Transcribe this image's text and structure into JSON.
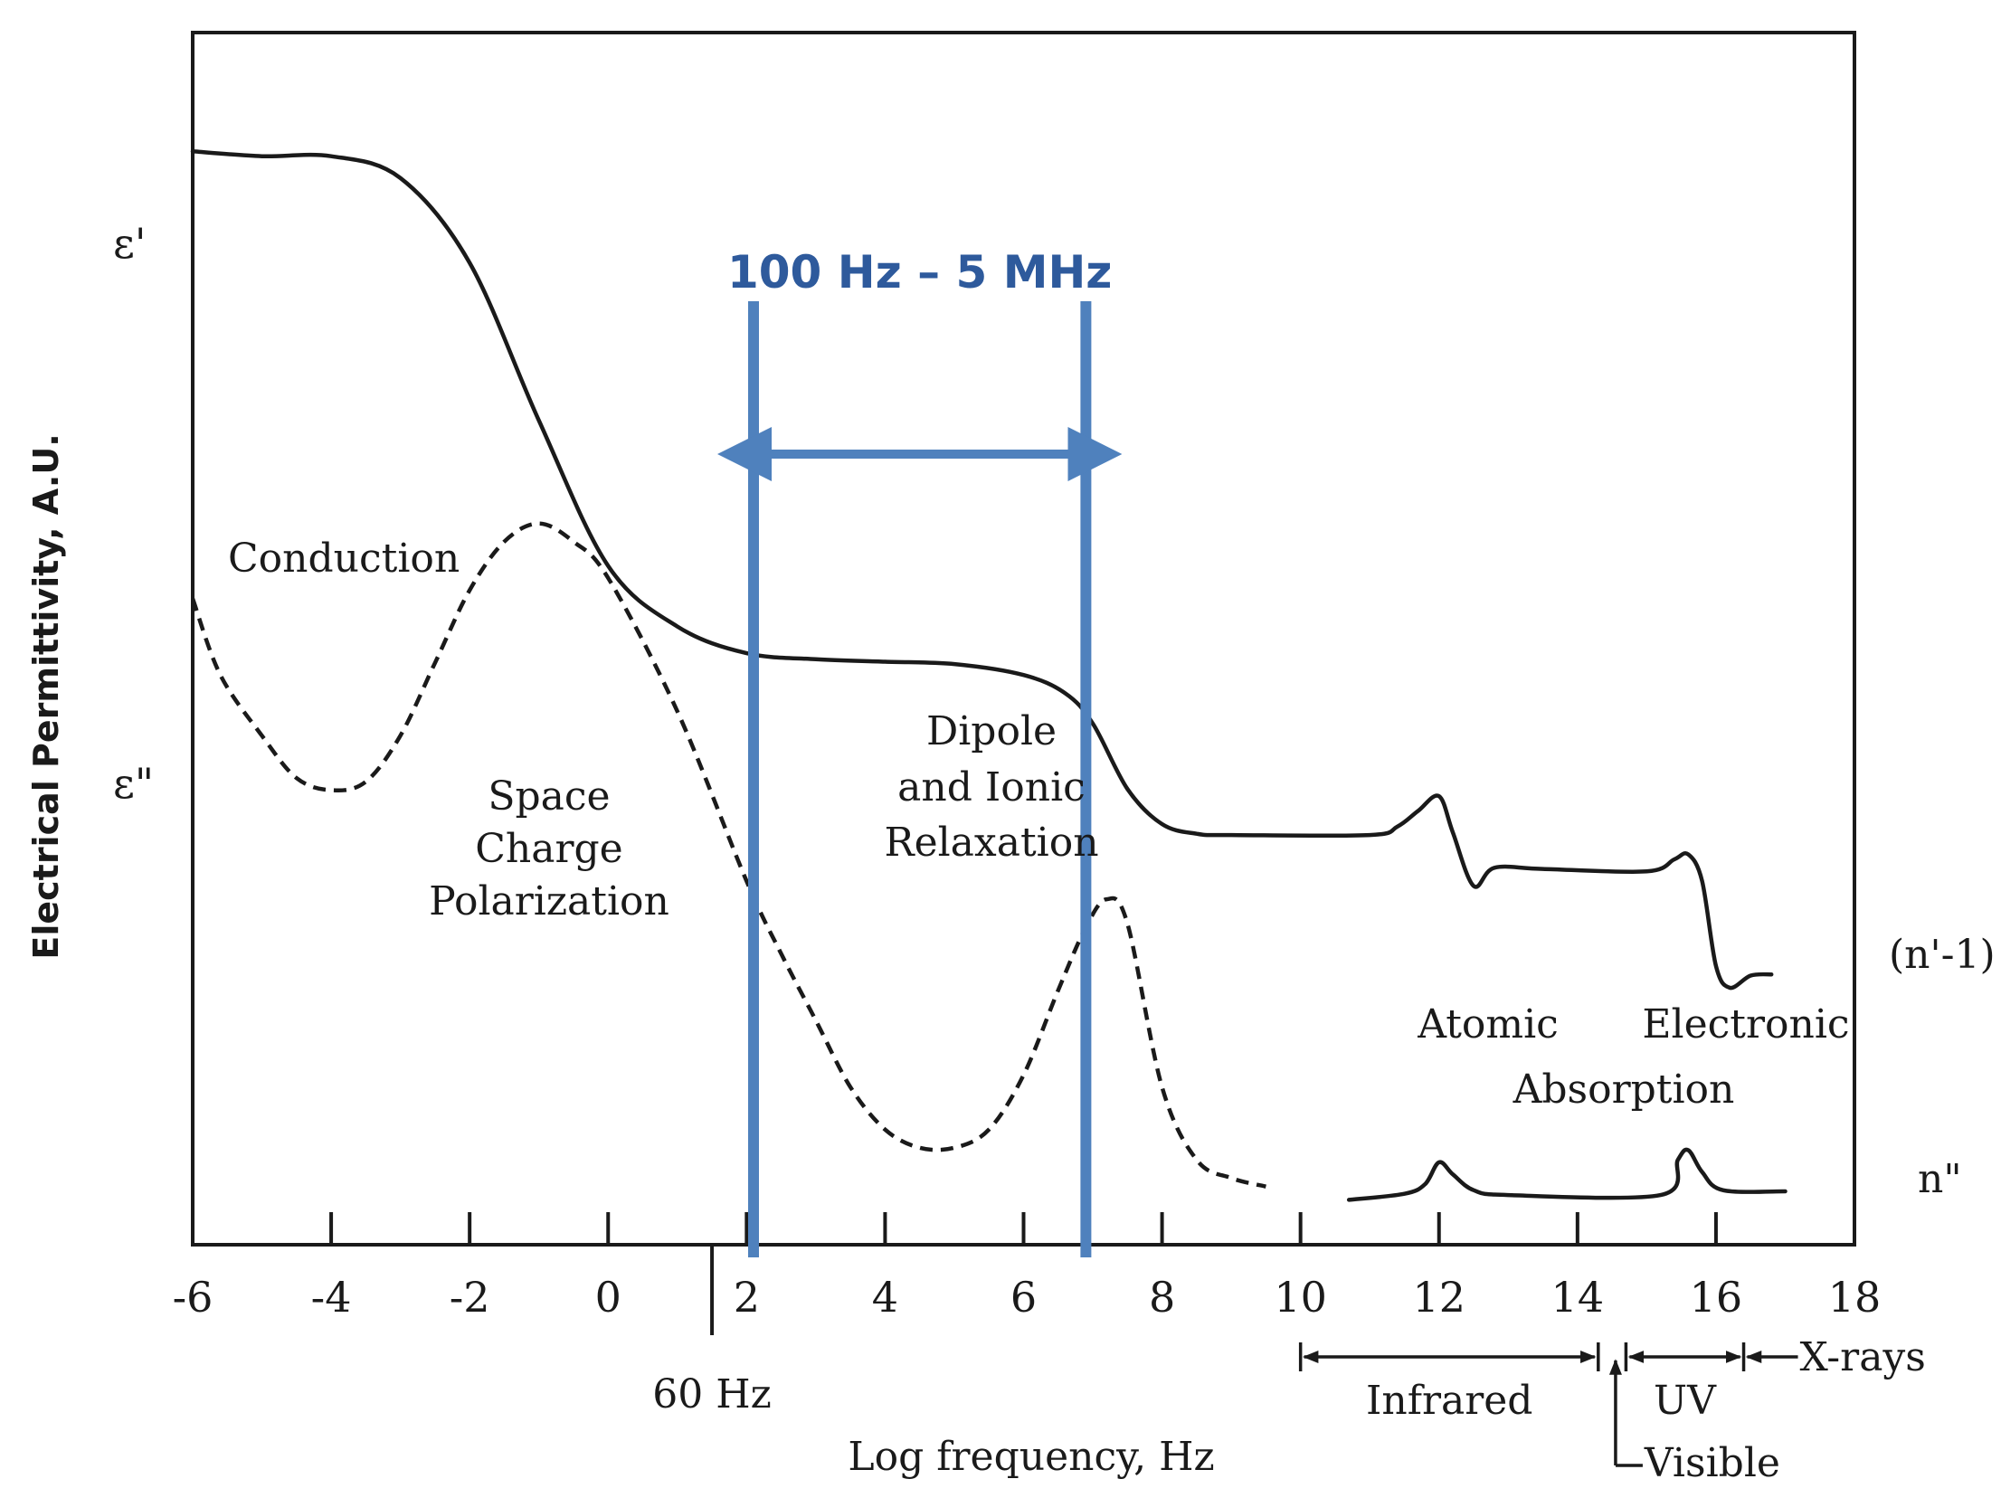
{
  "chart_data": {
    "type": "line",
    "title": "",
    "xlabel": "Log frequency, Hz",
    "ylabel": "Electrical Permittivity, A.U.",
    "xlim": [
      -6,
      18
    ],
    "xticks": [
      -6,
      -4,
      -2,
      0,
      2,
      4,
      6,
      8,
      10,
      12,
      14,
      16,
      18
    ],
    "yticks_labels": [
      "ε'",
      "ε\""
    ],
    "series": [
      {
        "name": "ε'",
        "style": "solid",
        "points": [
          [
            -6,
            0.902
          ],
          [
            -5,
            0.898
          ],
          [
            -4,
            0.898
          ],
          [
            -3,
            0.88
          ],
          [
            -2,
            0.81
          ],
          [
            -1,
            0.68
          ],
          [
            0,
            0.56
          ],
          [
            1,
            0.51
          ],
          [
            2,
            0.488
          ],
          [
            3,
            0.483
          ],
          [
            4,
            0.481
          ],
          [
            5,
            0.479
          ],
          [
            6,
            0.47
          ],
          [
            6.6,
            0.455
          ],
          [
            7,
            0.43
          ],
          [
            7.5,
            0.376
          ],
          [
            8,
            0.347
          ],
          [
            8.5,
            0.339
          ],
          [
            9,
            0.338
          ],
          [
            11,
            0.338
          ],
          [
            11.4,
            0.345
          ],
          [
            11.7,
            0.358
          ],
          [
            12,
            0.37
          ],
          [
            12.2,
            0.34
          ],
          [
            12.5,
            0.296
          ],
          [
            12.8,
            0.311
          ],
          [
            13.5,
            0.31
          ],
          [
            15,
            0.308
          ],
          [
            15.4,
            0.318
          ],
          [
            15.6,
            0.322
          ],
          [
            15.8,
            0.3
          ],
          [
            16,
            0.23
          ],
          [
            16.2,
            0.212
          ],
          [
            16.5,
            0.222
          ],
          [
            16.8,
            0.223
          ]
        ]
      },
      {
        "name": "ε\"",
        "style": "dashed",
        "points": [
          [
            -6,
            0.533
          ],
          [
            -5.6,
            0.47
          ],
          [
            -5,
            0.42
          ],
          [
            -4.5,
            0.385
          ],
          [
            -4,
            0.375
          ],
          [
            -3.5,
            0.382
          ],
          [
            -3,
            0.42
          ],
          [
            -2.5,
            0.48
          ],
          [
            -2,
            0.54
          ],
          [
            -1.5,
            0.58
          ],
          [
            -1,
            0.595
          ],
          [
            -0.5,
            0.58
          ],
          [
            0,
            0.55
          ],
          [
            1,
            0.44
          ],
          [
            2,
            0.3
          ],
          [
            2.5,
            0.24
          ],
          [
            3,
            0.185
          ],
          [
            3.5,
            0.13
          ],
          [
            4,
            0.095
          ],
          [
            4.5,
            0.08
          ],
          [
            5,
            0.08
          ],
          [
            5.5,
            0.095
          ],
          [
            6,
            0.14
          ],
          [
            6.5,
            0.21
          ],
          [
            6.9,
            0.262
          ],
          [
            7.2,
            0.285
          ],
          [
            7.5,
            0.265
          ],
          [
            8,
            0.13
          ],
          [
            8.5,
            0.07
          ],
          [
            9,
            0.055
          ],
          [
            9.5,
            0.048
          ]
        ]
      },
      {
        "name": "n\"",
        "style": "solid",
        "points": [
          [
            10.7,
            0.037
          ],
          [
            11.5,
            0.042
          ],
          [
            11.8,
            0.05
          ],
          [
            12,
            0.068
          ],
          [
            12.2,
            0.058
          ],
          [
            12.5,
            0.045
          ],
          [
            13,
            0.041
          ],
          [
            15.2,
            0.041
          ],
          [
            15.45,
            0.07
          ],
          [
            15.6,
            0.078
          ],
          [
            15.8,
            0.06
          ],
          [
            16.1,
            0.045
          ],
          [
            17,
            0.044
          ]
        ]
      }
    ],
    "annotations": {
      "band_label": "100 Hz – 5 MHz",
      "band_range": [
        2.1,
        6.9
      ],
      "mark_60hz": "60 Hz",
      "mark_60hz_x": 1.5,
      "label_n_prime": "(n'-1)",
      "label_n_double": "n\"",
      "conduction": "Conduction",
      "space_charge": [
        "Space",
        "Charge",
        "Polarization"
      ],
      "dipole": [
        "Dipole",
        "and Ionic",
        "Relaxation"
      ],
      "atomic": "Atomic",
      "electronic": "Electronic",
      "absorption": "Absorption",
      "infrared": "Infrared",
      "infrared_range": [
        10,
        14.3
      ],
      "uv": "UV",
      "uv_range": [
        14.7,
        16.4
      ],
      "xrays": "X-rays",
      "xrays_start": 16.4,
      "visible": "Visible",
      "visible_x": 14.55
    },
    "colors": {
      "ink": "#1a1a1a",
      "accent": "#4f81bd",
      "accent_text": "#2e5a9c"
    }
  }
}
